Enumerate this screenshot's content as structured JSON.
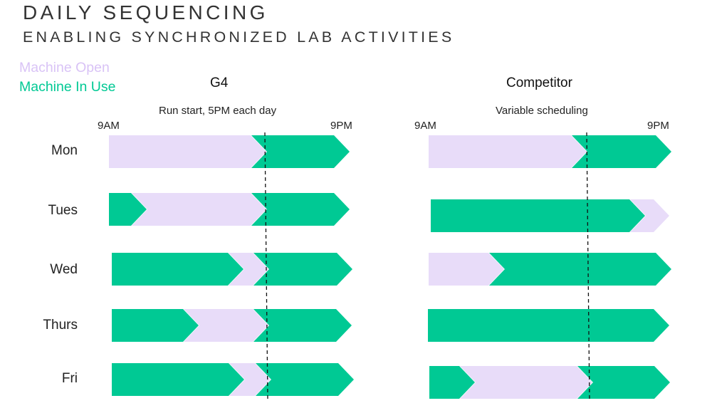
{
  "header": {
    "title": "DAILY SEQUENCING",
    "subtitle": "ENABLING SYNCHRONIZED LAB ACTIVITIES"
  },
  "legend": {
    "open_label": "Machine Open",
    "in_use_label": "Machine In Use"
  },
  "colors": {
    "open": "#e8dcf9",
    "in_use": "#00c994",
    "open_text": "#d9c3f6",
    "in_use_text": "#00c994"
  },
  "days": [
    "Mon",
    "Tues",
    "Wed",
    "Thurs",
    "Fri"
  ],
  "panels": [
    {
      "title": "G4",
      "note": "Run start, 5PM each day",
      "start_label": "9AM",
      "end_label": "9PM"
    },
    {
      "title": "Competitor",
      "note": "Variable scheduling",
      "start_label": "9AM",
      "end_label": "9PM"
    }
  ]
}
